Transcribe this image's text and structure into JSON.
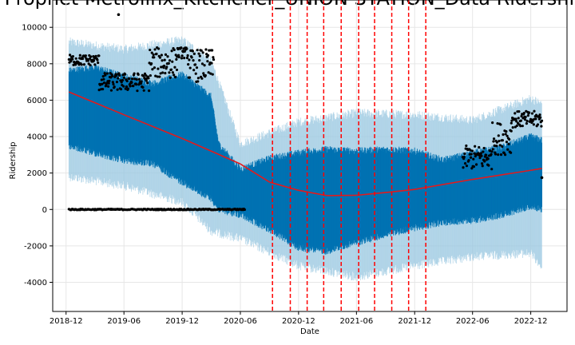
{
  "chart_data": {
    "type": "line",
    "title": "Prophet Metrolinx_Kitchener_UNION STATION_Data Ridership",
    "xlabel": "Date",
    "ylabel": "Ridership",
    "xlim": [
      "2018-10-20",
      "2023-03-25"
    ],
    "ylim": [
      -5600,
      11500
    ],
    "grid": true,
    "x_ticks": [
      "2018-12",
      "2019-06",
      "2019-12",
      "2020-06",
      "2020-12",
      "2021-06",
      "2021-12",
      "2022-06",
      "2022-12"
    ],
    "x_tick_dates": [
      "2018-12-01",
      "2019-06-01",
      "2019-12-01",
      "2020-06-01",
      "2020-12-01",
      "2021-06-01",
      "2021-12-01",
      "2022-06-01",
      "2022-12-01"
    ],
    "y_ticks": [
      -4000,
      -2000,
      0,
      2000,
      4000,
      6000,
      8000,
      10000
    ],
    "series": [
      {
        "kind": "trend",
        "color": "#e41a1c",
        "points": [
          [
            "2018-12-10",
            6450
          ],
          [
            "2019-06-01",
            5200
          ],
          [
            "2019-12-01",
            3900
          ],
          [
            "2020-06-01",
            2500
          ],
          [
            "2020-09-01",
            1500
          ],
          [
            "2020-12-01",
            1050
          ],
          [
            "2021-03-01",
            760
          ],
          [
            "2021-06-01",
            780
          ],
          [
            "2021-09-01",
            930
          ],
          [
            "2021-12-01",
            1100
          ],
          [
            "2022-06-01",
            1650
          ],
          [
            "2022-12-01",
            2150
          ],
          [
            "2023-01-05",
            2250
          ]
        ]
      },
      {
        "kind": "forecast_band",
        "color": "#0072B2",
        "points": [
          [
            "2018-12-10",
            3500,
            7600
          ],
          [
            "2019-03-01",
            3100,
            7800
          ],
          [
            "2019-06-01",
            2700,
            7300
          ],
          [
            "2019-09-01",
            2500,
            6900
          ],
          [
            "2019-12-01",
            1500,
            7400
          ],
          [
            "2020-03-01",
            600,
            6200
          ],
          [
            "2020-03-25",
            0,
            3600
          ],
          [
            "2020-06-01",
            -300,
            2200
          ],
          [
            "2020-09-01",
            -1100,
            2800
          ],
          [
            "2020-12-01",
            -2100,
            3100
          ],
          [
            "2021-03-01",
            -2300,
            3300
          ],
          [
            "2021-06-01",
            -1800,
            3200
          ],
          [
            "2021-09-01",
            -1400,
            3300
          ],
          [
            "2021-12-01",
            -1000,
            3200
          ],
          [
            "2022-03-01",
            -700,
            2700
          ],
          [
            "2022-06-01",
            -600,
            3100
          ],
          [
            "2022-09-01",
            -300,
            3400
          ],
          [
            "2022-12-01",
            200,
            4000
          ],
          [
            "2023-01-05",
            0,
            3800
          ]
        ]
      },
      {
        "kind": "uncertainty_band",
        "color": "#9ecae1",
        "points": [
          [
            "2018-12-10",
            1800,
            9200
          ],
          [
            "2019-06-01",
            1300,
            8800
          ],
          [
            "2019-12-01",
            400,
            9300
          ],
          [
            "2020-03-01",
            -1200,
            8200
          ],
          [
            "2020-06-01",
            -1600,
            3600
          ],
          [
            "2020-12-01",
            -3100,
            4800
          ],
          [
            "2021-06-01",
            -3700,
            5300
          ],
          [
            "2021-12-01",
            -3100,
            5200
          ],
          [
            "2022-06-01",
            -2600,
            4900
          ],
          [
            "2022-12-01",
            -2400,
            6100
          ],
          [
            "2023-01-05",
            -3200,
            5800
          ]
        ]
      },
      {
        "kind": "observed_points",
        "color": "#000000",
        "segments": [
          {
            "from": "2018-12-10",
            "to": "2019-03-15",
            "low": 7900,
            "high": 8500
          },
          {
            "from": "2019-03-15",
            "to": "2019-08-20",
            "low": 6500,
            "high": 7500
          },
          {
            "from": "2019-08-20",
            "to": "2019-11-15",
            "low": 7200,
            "high": 8900
          },
          {
            "from": "2019-11-15",
            "to": "2019-12-20",
            "low": 8300,
            "high": 8900
          },
          {
            "from": "2019-12-20",
            "to": "2020-03-10",
            "low": 7000,
            "high": 8800
          },
          {
            "from": "2022-05-01",
            "to": "2022-08-01",
            "low": 2200,
            "high": 3500
          },
          {
            "from": "2022-08-01",
            "to": "2022-10-01",
            "low": 3000,
            "high": 4800
          },
          {
            "from": "2022-10-01",
            "to": "2023-01-05",
            "low": 4500,
            "high": 5400
          }
        ],
        "baseline": {
          "from": "2018-12-10",
          "to": "2020-06-15",
          "value": 0
        },
        "outliers": [
          [
            "2019-05-15",
            10700
          ],
          [
            "2023-01-05",
            1750
          ]
        ]
      }
    ],
    "changepoints": {
      "color": "#ff0000",
      "style": "dashed",
      "dates": [
        "2020-09-10",
        "2020-11-05",
        "2020-12-28",
        "2021-02-18",
        "2021-04-14",
        "2021-06-08",
        "2021-07-28",
        "2021-09-20",
        "2021-11-12",
        "2022-01-05"
      ]
    }
  }
}
